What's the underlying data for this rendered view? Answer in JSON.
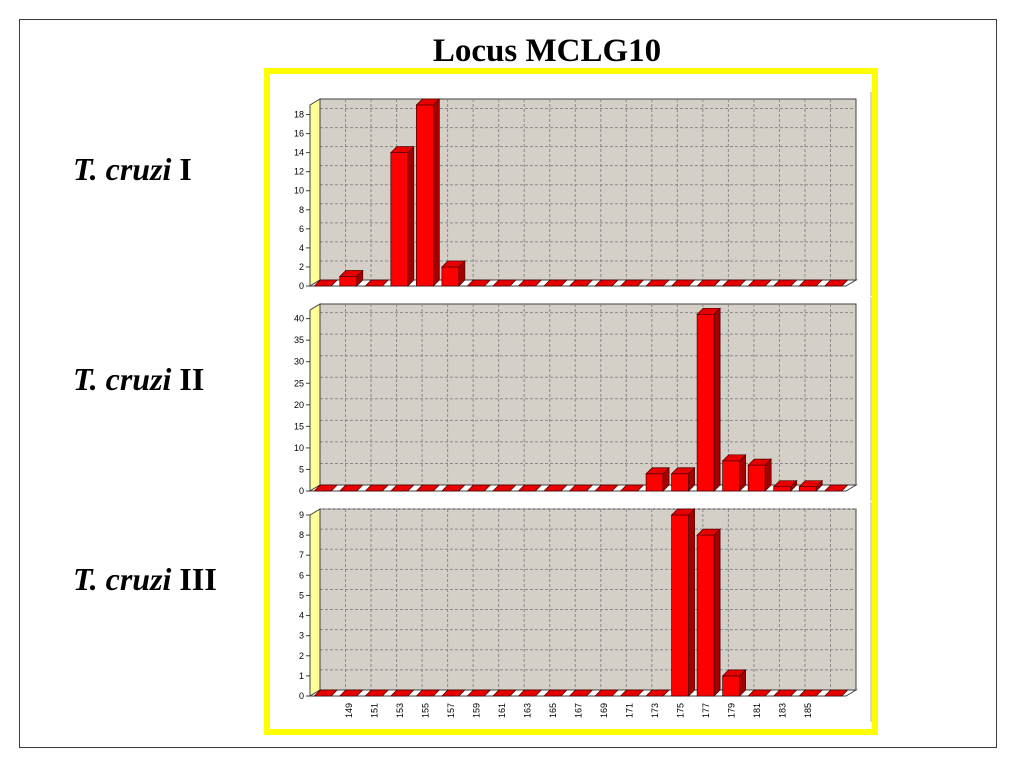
{
  "chart_data": {
    "type": "bar",
    "three_d": true,
    "grid": true,
    "title": "Locus MCLG10",
    "categories": [
      "",
      "149",
      "151",
      "153",
      "155",
      "157",
      "159",
      "161",
      "163",
      "165",
      "167",
      "169",
      "171",
      "173",
      "175",
      "177",
      "179",
      "181",
      "183",
      "185",
      ""
    ],
    "series": [
      {
        "name_italic": "T. cruzi",
        "name_roman": "I",
        "ylim": [
          0,
          19
        ],
        "yticks": [
          0,
          2,
          4,
          6,
          8,
          10,
          12,
          14,
          16,
          18
        ],
        "values": [
          0,
          1,
          0,
          14,
          19,
          2,
          0,
          0,
          0,
          0,
          0,
          0,
          0,
          0,
          0,
          0,
          0,
          0,
          0,
          0,
          0
        ]
      },
      {
        "name_italic": "T. cruzi",
        "name_roman": "II",
        "ylim": [
          0,
          42
        ],
        "yticks": [
          0,
          5,
          10,
          15,
          20,
          25,
          30,
          35,
          40
        ],
        "values": [
          0,
          0,
          0,
          0,
          0,
          0,
          0,
          0,
          0,
          0,
          0,
          0,
          0,
          4,
          4,
          41,
          7,
          6,
          1,
          1,
          0
        ]
      },
      {
        "name_italic": "T. cruzi",
        "name_roman": "III",
        "ylim": [
          0,
          9
        ],
        "yticks": [
          0,
          1,
          2,
          3,
          4,
          5,
          6,
          7,
          8,
          9
        ],
        "values": [
          0,
          0,
          0,
          0,
          0,
          0,
          0,
          0,
          0,
          0,
          0,
          0,
          0,
          0,
          9,
          8,
          1,
          0,
          0,
          0,
          0
        ]
      }
    ]
  },
  "colors": {
    "panel_border": "#ffff00",
    "back_wall": "#d4d0c8",
    "left_wall": "#ffff99",
    "floor": "#ffffff",
    "outline": "#404040",
    "grid": "#8a8a8a",
    "bar_front": "#ff0000",
    "bar_side": "#a30000",
    "bar_top": "#e60000",
    "bar_edge": "#4a0000"
  }
}
